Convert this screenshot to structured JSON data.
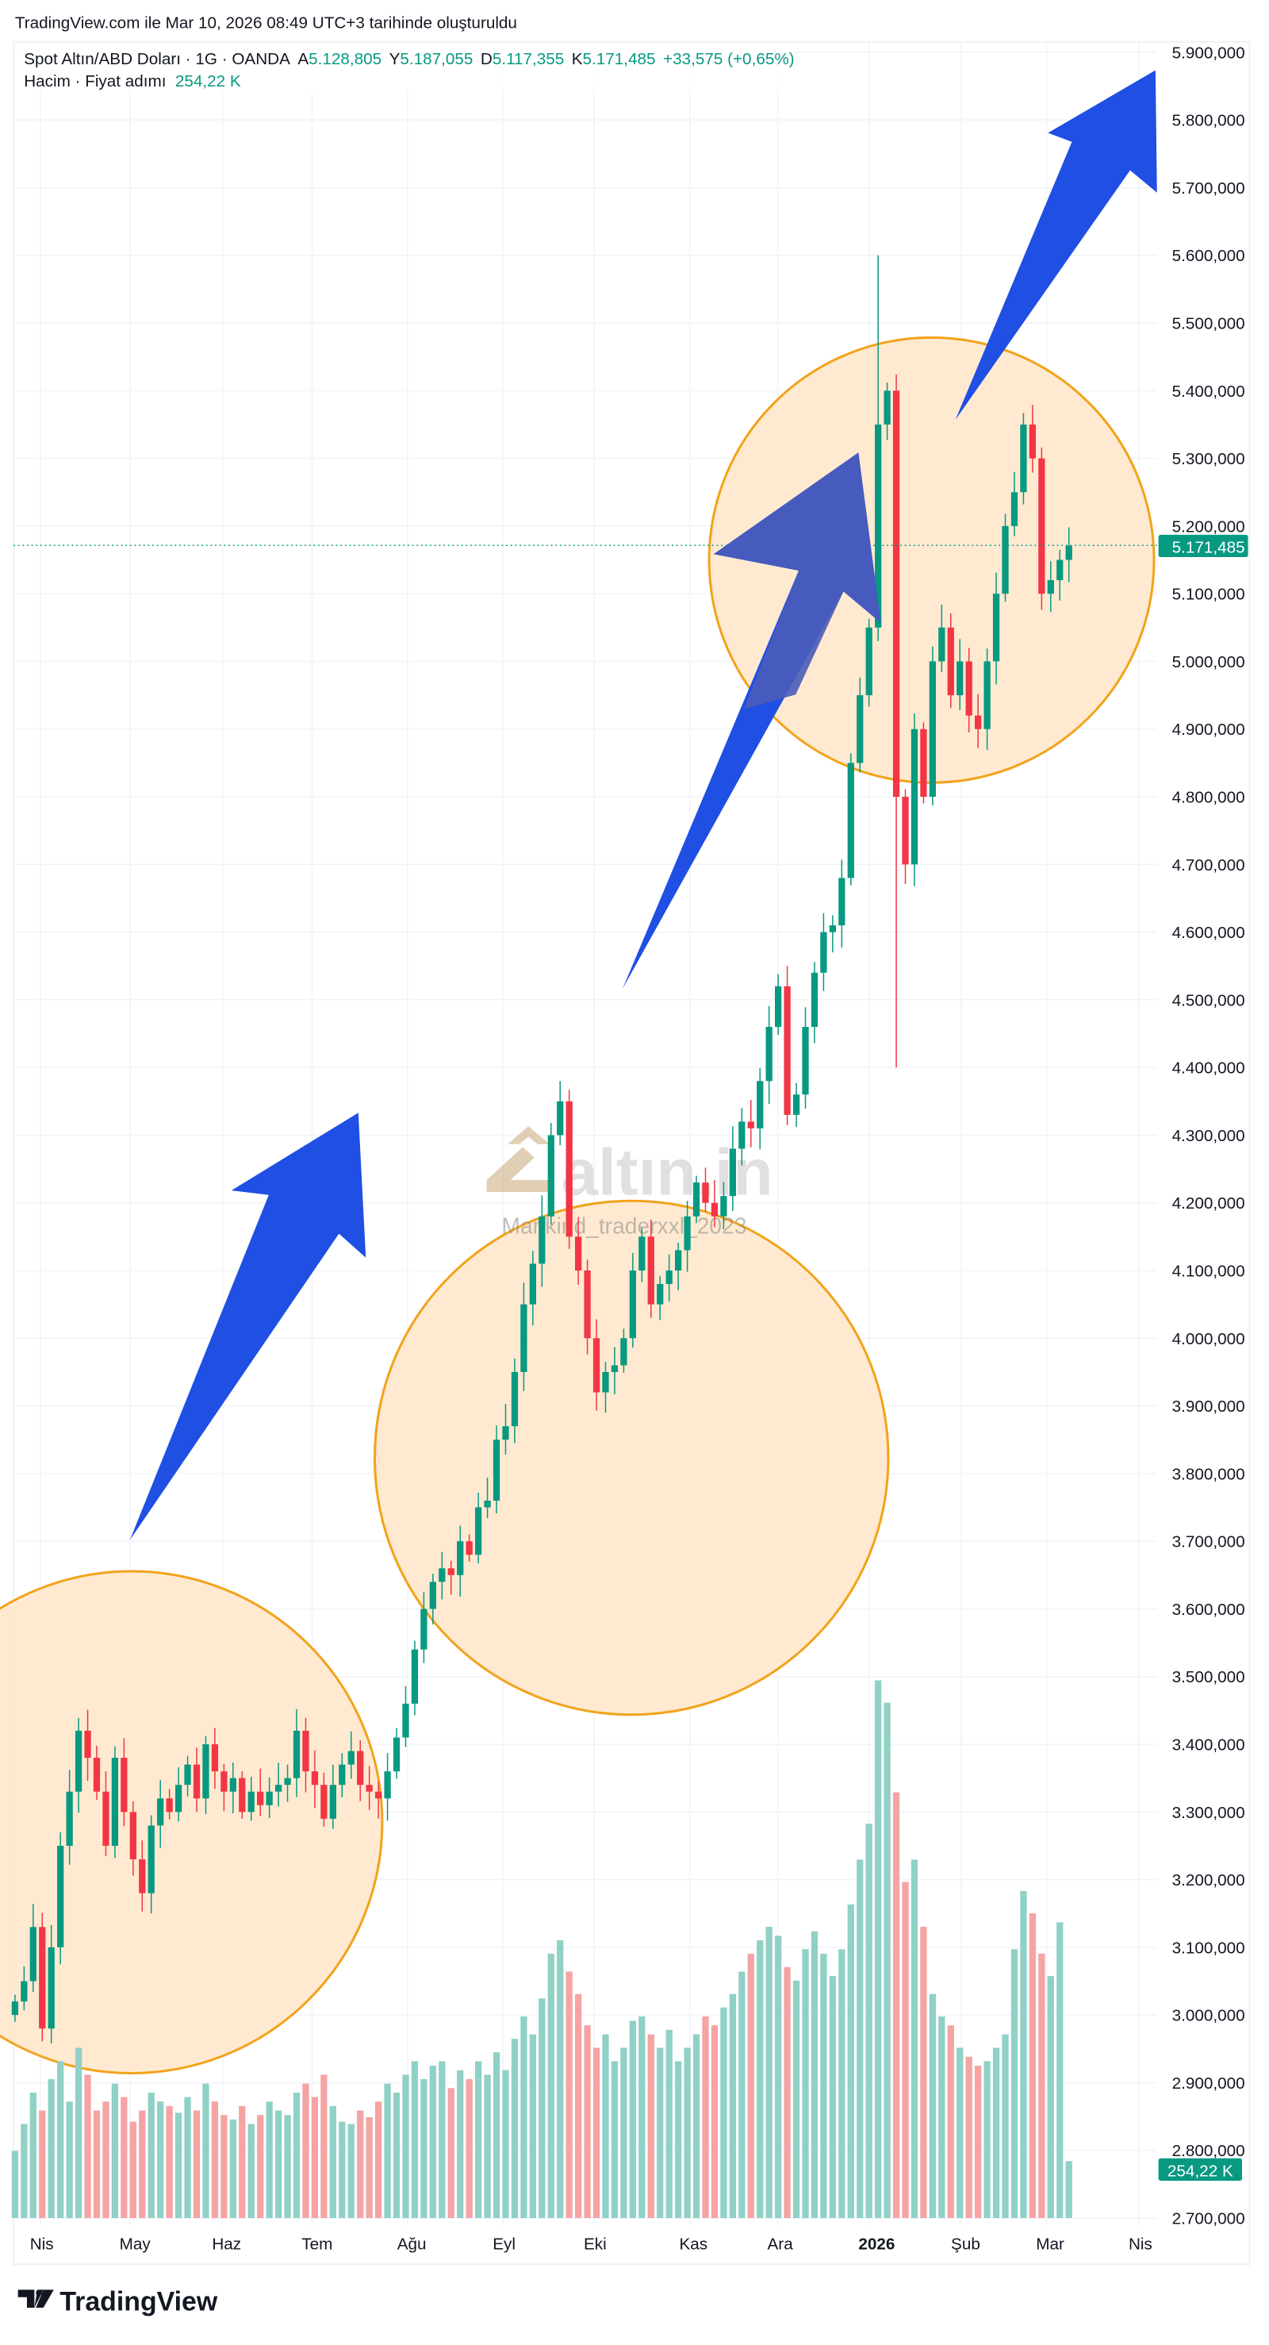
{
  "header": {
    "created": "TradingView.com ile Mar 10, 2026 08:49 UTC+3 tarihinde oluşturuldu",
    "symbol": "Spot Altın/ABD Doları · 1G · OANDA",
    "open_label": "A",
    "open": "5.128,805",
    "high_label": "Y",
    "high": "5.187,055",
    "low_label": "D",
    "low": "5.117,355",
    "close_label": "K",
    "close": "5.171,485",
    "change": "+33,575 (+0,65%)",
    "volume_label": "Hacim · Fiyat adımı",
    "volume_value": "254,22 K"
  },
  "watermark": {
    "logo": "altın.in",
    "author": "Mankind_traderxxl_2023"
  },
  "footer": {
    "brand": "TradingView"
  },
  "colors": {
    "up": "#089981",
    "down": "#f23645",
    "vol_up": "#8fd1c6",
    "vol_down": "#f5a3a3",
    "circle_fill": "#ffe8cc",
    "circle_stroke": "#f2a31b",
    "arrow": "#1f4fe3",
    "arrow_dark": "#4a5cb8"
  },
  "chart_data": {
    "type": "candlestick",
    "title": "Spot Altın/ABD Doları · 1G · OANDA",
    "y_ticks": [
      "5.900,000",
      "5.800,000",
      "5.700,000",
      "5.600,000",
      "5.500,000",
      "5.400,000",
      "5.300,000",
      "5.200,000",
      "5.100,000",
      "5.000,000",
      "4.900,000",
      "4.800,000",
      "4.700,000",
      "4.600,000",
      "4.500,000",
      "4.400,000",
      "4.300,000",
      "4.200,000",
      "4.100,000",
      "4.000,000",
      "3.900,000",
      "3.800,000",
      "3.700,000",
      "3.600,000",
      "3.500,000",
      "3.400,000",
      "3.300,000",
      "3.200,000",
      "3.100,000",
      "3.000,000",
      "2.900,000",
      "2.800,000",
      "2.700,000"
    ],
    "ylim": [
      2700,
      5900
    ],
    "x_ticks": [
      "Nis",
      "May",
      "Haz",
      "Tem",
      "Ağu",
      "Eyl",
      "Eki",
      "Kas",
      "Ara",
      "2026",
      "Şub",
      "Mar",
      "Nis"
    ],
    "last_price": 5171.485,
    "last_price_label": "5.171,485",
    "last_volume_label": "254,22 K",
    "wick_extremes": {
      "high": 5600,
      "low": 4400
    },
    "close": [
      3020,
      3050,
      3130,
      2980,
      3100,
      3250,
      3330,
      3420,
      3380,
      3330,
      3250,
      3380,
      3300,
      3230,
      3180,
      3280,
      3320,
      3300,
      3340,
      3370,
      3320,
      3400,
      3360,
      3330,
      3350,
      3300,
      3330,
      3310,
      3330,
      3340,
      3350,
      3420,
      3360,
      3340,
      3290,
      3340,
      3370,
      3390,
      3340,
      3330,
      3320,
      3360,
      3410,
      3460,
      3540,
      3600,
      3640,
      3660,
      3650,
      3700,
      3680,
      3750,
      3760,
      3850,
      3870,
      3950,
      4050,
      4110,
      4180,
      4300,
      4350,
      4150,
      4100,
      4000,
      3920,
      3950,
      3960,
      4000,
      4100,
      4150,
      4050,
      4080,
      4100,
      4130,
      4180,
      4230,
      4200,
      4180,
      4210,
      4280,
      4320,
      4310,
      4380,
      4460,
      4520,
      4330,
      4360,
      4460,
      4540,
      4600,
      4610,
      4680,
      4850,
      4950,
      5050,
      5350,
      5400,
      4800,
      4700,
      4900,
      4800,
      5000,
      5050,
      4950,
      5000,
      4920,
      4900,
      5000,
      5100,
      5200,
      5250,
      5350,
      5300,
      5100,
      5120,
      5150,
      5171
    ],
    "volume_k": [
      300,
      420,
      560,
      480,
      620,
      700,
      520,
      760,
      640,
      480,
      520,
      600,
      540,
      430,
      480,
      560,
      520,
      500,
      470,
      540,
      480,
      600,
      520,
      460,
      440,
      500,
      420,
      460,
      520,
      480,
      460,
      560,
      600,
      540,
      640,
      500,
      430,
      420,
      480,
      450,
      520,
      600,
      560,
      640,
      700,
      620,
      680,
      700,
      580,
      660,
      620,
      700,
      640,
      740,
      660,
      800,
      900,
      820,
      980,
      1180,
      1240,
      1100,
      1000,
      860,
      760,
      820,
      700,
      760,
      880,
      900,
      820,
      760,
      840,
      700,
      760,
      820,
      900,
      860,
      940,
      1000,
      1100,
      1180,
      1240,
      1300,
      1260,
      1120,
      1060,
      1200,
      1280,
      1180,
      1080,
      1200,
      1400,
      1600,
      1760,
      2400,
      2300,
      1900,
      1500,
      1600,
      1300,
      1000,
      900,
      860,
      760,
      720,
      680,
      700,
      760,
      820,
      1200,
      1460,
      1360,
      1180,
      1080,
      1320,
      254.22
    ]
  }
}
